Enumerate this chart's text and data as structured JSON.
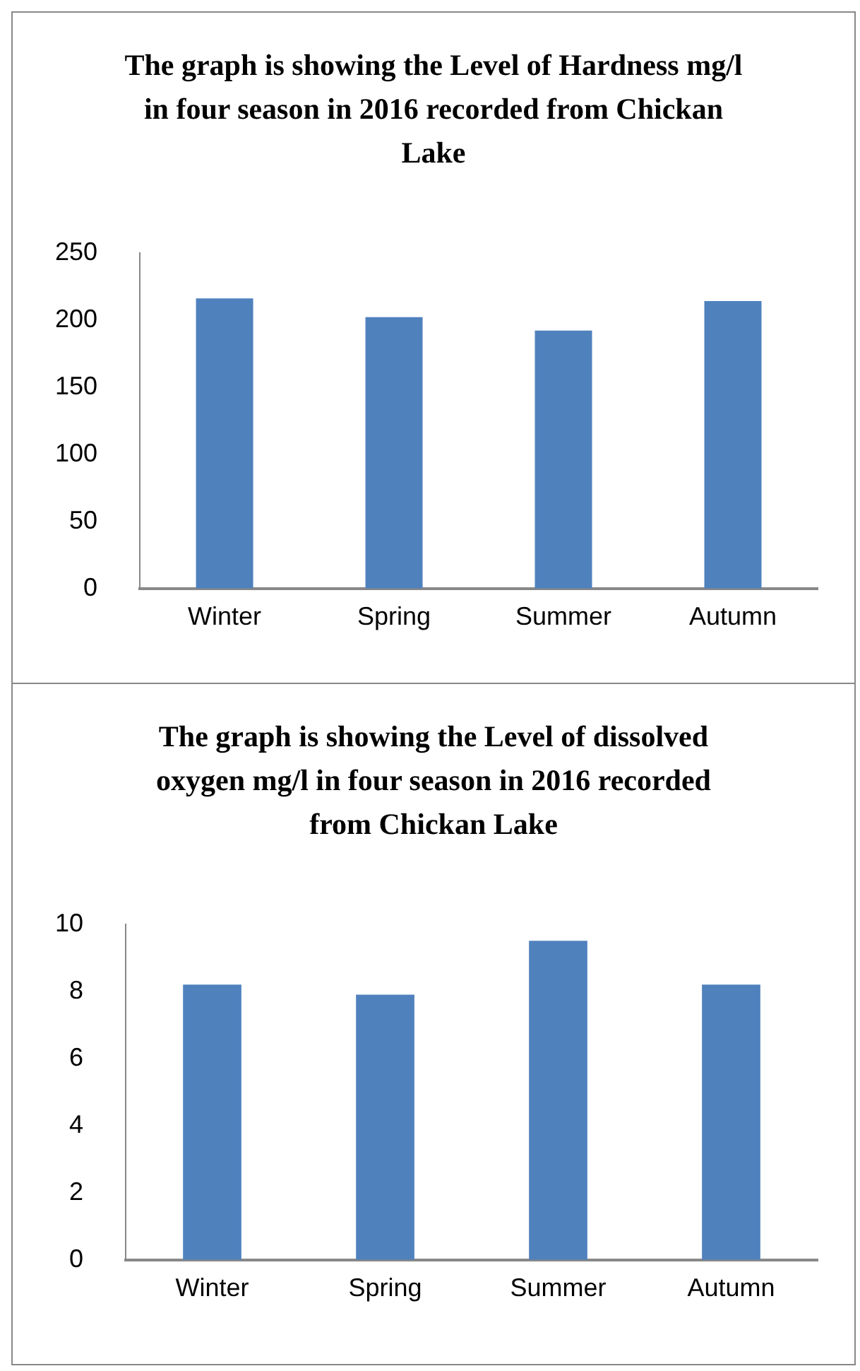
{
  "chart_data": [
    {
      "type": "bar",
      "title": "The graph is showing the Level of Hardness mg/l in four season in 2016 recorded from Chickan Lake",
      "categories": [
        "Winter",
        "Spring",
        "Summer",
        "Autumn"
      ],
      "values": [
        216,
        202,
        192,
        214
      ],
      "color": "#4f81bd",
      "ylim": [
        0,
        250
      ],
      "yticks": [
        0,
        50,
        100,
        150,
        200,
        250
      ],
      "grid": false,
      "legend": false
    },
    {
      "type": "bar",
      "title": "The graph is showing the Level of dissolved oxygen mg/l in four season in 2016 recorded from Chickan Lake",
      "categories": [
        "Winter",
        "Spring",
        "Summer",
        "Autumn"
      ],
      "values": [
        8.2,
        7.9,
        9.5,
        8.2
      ],
      "color": "#4f81bd",
      "ylim": [
        0,
        10
      ],
      "yticks": [
        0,
        2,
        4,
        6,
        8,
        10
      ],
      "grid": false,
      "legend": false
    }
  ]
}
